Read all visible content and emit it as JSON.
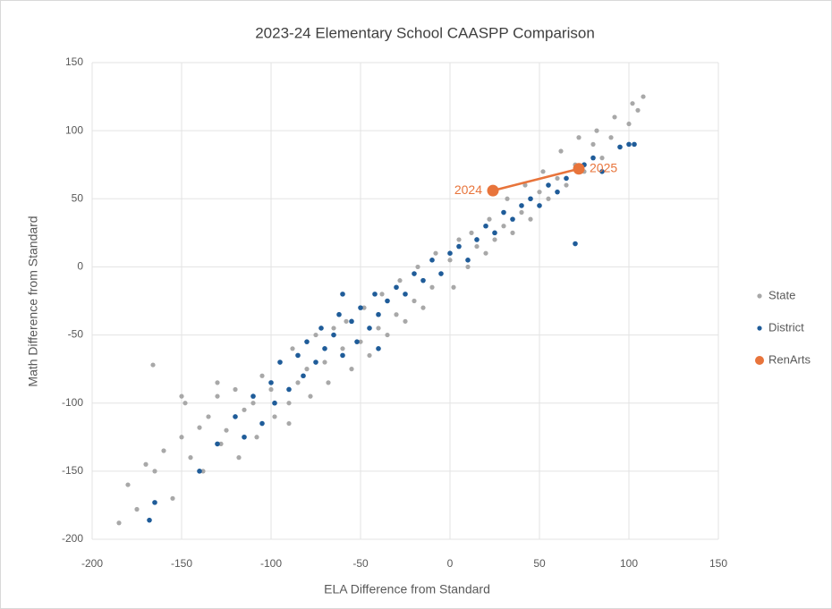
{
  "chart_data": {
    "type": "scatter",
    "title": "2023-24 Elementary School CAASPP Comparison",
    "x_label": "ELA Difference from Standard",
    "y_label": "Math Difference from Standard",
    "xlim": [
      -200,
      150
    ],
    "xticks": [
      -200,
      -150,
      -100,
      -50,
      0,
      50,
      100,
      150
    ],
    "ylim": [
      -200,
      150
    ],
    "yticks": [
      -200,
      -150,
      -100,
      -50,
      0,
      50,
      100,
      150
    ],
    "grid": true,
    "legend": "right",
    "series": [
      {
        "name": "State",
        "color": "#a8a8a8",
        "x": [
          -185,
          -180,
          -175,
          -170,
          -165,
          -160,
          -155,
          -150,
          -148,
          -145,
          -140,
          -138,
          -135,
          -130,
          -128,
          -125,
          -120,
          -118,
          -115,
          -110,
          -108,
          -105,
          -100,
          -98,
          -95,
          -90,
          -88,
          -85,
          -80,
          -78,
          -75,
          -70,
          -68,
          -65,
          -60,
          -58,
          -55,
          -50,
          -48,
          -45,
          -40,
          -38,
          -35,
          -30,
          -28,
          -25,
          -20,
          -18,
          -15,
          -10,
          -8,
          -5,
          0,
          2,
          5,
          10,
          12,
          15,
          20,
          22,
          25,
          30,
          32,
          35,
          40,
          42,
          45,
          50,
          52,
          55,
          60,
          62,
          65,
          70,
          72,
          75,
          80,
          82,
          85,
          90,
          92,
          95,
          100,
          102,
          105,
          108,
          -166,
          -150,
          -130,
          -90
        ],
        "values": [
          -188,
          -160,
          -178,
          -145,
          -150,
          -135,
          -170,
          -125,
          -100,
          -140,
          -118,
          -150,
          -110,
          -95,
          -130,
          -120,
          -90,
          -140,
          -105,
          -100,
          -125,
          -80,
          -90,
          -110,
          -70,
          -100,
          -60,
          -85,
          -75,
          -95,
          -50,
          -70,
          -85,
          -45,
          -60,
          -40,
          -75,
          -55,
          -30,
          -65,
          -45,
          -20,
          -50,
          -35,
          -10,
          -40,
          -25,
          0,
          -30,
          -15,
          10,
          -5,
          5,
          -15,
          20,
          0,
          25,
          15,
          10,
          35,
          20,
          30,
          50,
          25,
          40,
          60,
          35,
          55,
          70,
          50,
          65,
          85,
          60,
          75,
          95,
          70,
          90,
          100,
          80,
          95,
          110,
          88,
          105,
          120,
          115,
          125,
          -72,
          -95,
          -85,
          -115
        ]
      },
      {
        "name": "District",
        "color": "#1f5c99",
        "x": [
          -168,
          -165,
          -140,
          -130,
          -120,
          -115,
          -110,
          -105,
          -100,
          -98,
          -95,
          -90,
          -85,
          -82,
          -80,
          -75,
          -72,
          -70,
          -65,
          -62,
          -60,
          -55,
          -52,
          -50,
          -45,
          -42,
          -40,
          -35,
          -30,
          -25,
          -20,
          -15,
          -10,
          -5,
          0,
          5,
          10,
          15,
          20,
          25,
          30,
          35,
          40,
          45,
          50,
          55,
          60,
          65,
          70,
          75,
          80,
          85,
          95,
          100,
          103,
          -60,
          -40
        ],
        "values": [
          -186,
          -173,
          -150,
          -130,
          -110,
          -125,
          -95,
          -115,
          -85,
          -100,
          -70,
          -90,
          -65,
          -80,
          -55,
          -70,
          -45,
          -60,
          -50,
          -35,
          -65,
          -40,
          -55,
          -30,
          -45,
          -20,
          -35,
          -25,
          -15,
          -20,
          -5,
          -10,
          5,
          -5,
          10,
          15,
          5,
          20,
          30,
          25,
          40,
          35,
          45,
          50,
          45,
          60,
          55,
          65,
          17,
          75,
          80,
          70,
          88,
          90,
          90,
          -20,
          -60
        ]
      },
      {
        "name": "RenArts",
        "color": "#e8743b",
        "connect": true,
        "x": [
          24,
          72
        ],
        "values": [
          56,
          72
        ],
        "point_labels": [
          "2024",
          "2025"
        ]
      }
    ]
  }
}
